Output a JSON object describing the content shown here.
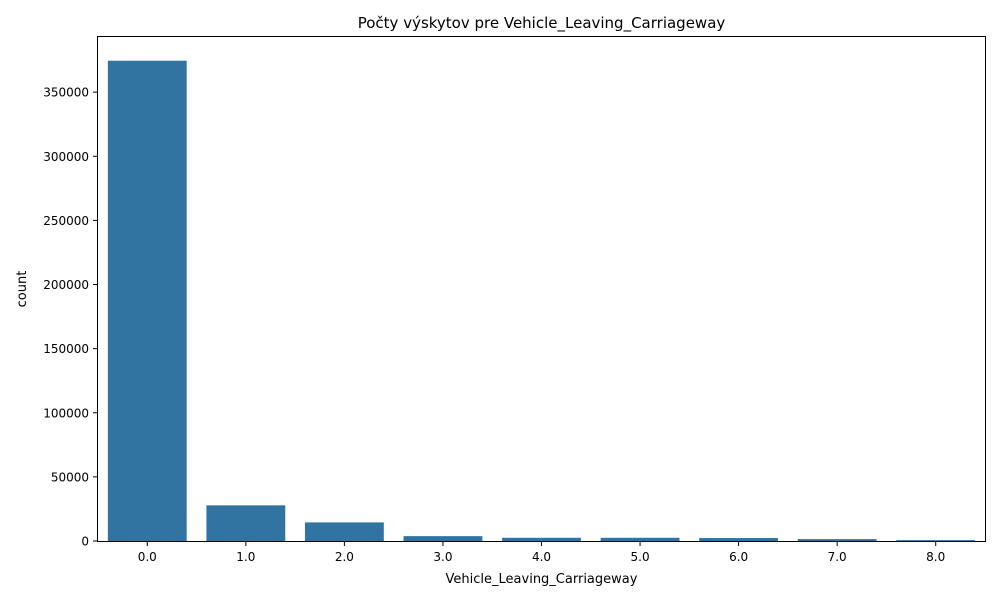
{
  "chart_data": {
    "type": "bar",
    "title": "Počty výskytov pre Vehicle_Leaving_Carriageway",
    "xlabel": "Vehicle_Leaving_Carriageway",
    "ylabel": "count",
    "categories": [
      "0.0",
      "1.0",
      "2.0",
      "3.0",
      "4.0",
      "5.0",
      "6.0",
      "7.0",
      "8.0"
    ],
    "values": [
      374500,
      27800,
      14500,
      3800,
      2500,
      2500,
      2300,
      1500,
      700
    ],
    "ylim": [
      0,
      393000
    ],
    "yticks": [
      0,
      50000,
      100000,
      150000,
      200000,
      250000,
      300000,
      350000
    ],
    "ytick_labels": [
      "0",
      "50000",
      "100000",
      "150000",
      "200000",
      "250000",
      "300000",
      "350000"
    ],
    "grid": false,
    "bar_color": "#3274a1"
  }
}
